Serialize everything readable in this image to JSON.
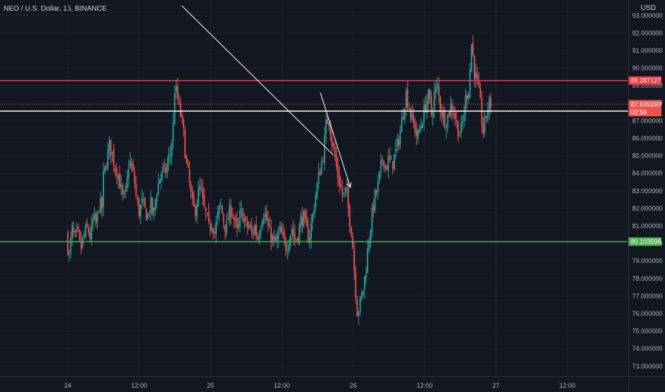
{
  "header": {
    "title": "NEO / U.S. Dollar, 15, BINANCE",
    "currency": "USD"
  },
  "colors": {
    "background": "#131722",
    "up": "#26a69a",
    "down": "#ef5350",
    "resistance": "#f23645",
    "support": "#4caf50",
    "marker": "#ffffff",
    "trendline": "#ffffff",
    "price": "#ef5350",
    "axis_text": "#b2b5be"
  },
  "chart_data": {
    "type": "candlestick",
    "y_axis": {
      "ticks": [
        "93.000000",
        "92.000000",
        "91.000000",
        "90.000000",
        "89.000000",
        "88.000000",
        "87.000000",
        "86.000000",
        "85.000000",
        "84.000000",
        "83.000000",
        "82.000000",
        "81.000000",
        "80.000000",
        "79.000000",
        "78.000000",
        "77.000000",
        "76.000000",
        "75.000000",
        "74.000000",
        "73.000000"
      ],
      "range": [
        72.6,
        93.4
      ]
    },
    "x_axis": {
      "ticks": [
        "24",
        "12:00",
        "25",
        "12:00",
        "26",
        "12:00",
        "27",
        "12:00"
      ]
    },
    "horizontal_lines": [
      {
        "label": "89.287127",
        "value": 89.287127,
        "role": "resistance"
      },
      {
        "label": "87.552208",
        "value": 87.552208,
        "role": "marker"
      },
      {
        "label": "80.103598",
        "value": 80.103598,
        "role": "support"
      }
    ],
    "current_price": {
      "value": "87.939260",
      "countdown": "02:56"
    },
    "trend_line": {
      "from": {
        "bar": 0.8,
        "price": 93.55
      },
      "to": {
        "bar": 1.86,
        "price": 85.05
      }
    },
    "projection_arrow": {
      "from": {
        "bar": 1.77,
        "price": 88.6
      },
      "to": {
        "bar": 1.98,
        "price": 83.2
      }
    },
    "price_path": [
      [
        0.0,
        80.5
      ],
      [
        0.02,
        79.2
      ],
      [
        0.04,
        80.8
      ],
      [
        0.06,
        80.2
      ],
      [
        0.08,
        80.6
      ],
      [
        0.1,
        79.6
      ],
      [
        0.12,
        80.4
      ],
      [
        0.15,
        80.9
      ],
      [
        0.17,
        80.3
      ],
      [
        0.19,
        81.5
      ],
      [
        0.21,
        81.0
      ],
      [
        0.23,
        82.3
      ],
      [
        0.25,
        82.0
      ],
      [
        0.26,
        83.8
      ],
      [
        0.28,
        84.6
      ],
      [
        0.3,
        85.6
      ],
      [
        0.32,
        85.2
      ],
      [
        0.34,
        84.4
      ],
      [
        0.36,
        84.1
      ],
      [
        0.38,
        83.2
      ],
      [
        0.4,
        82.4
      ],
      [
        0.42,
        83.0
      ],
      [
        0.44,
        84.8
      ],
      [
        0.46,
        84.2
      ],
      [
        0.48,
        83.4
      ],
      [
        0.49,
        82.6
      ],
      [
        0.51,
        81.8
      ],
      [
        0.53,
        82.3
      ],
      [
        0.55,
        81.9
      ],
      [
        0.57,
        81.5
      ],
      [
        0.59,
        82.3
      ],
      [
        0.61,
        81.5
      ],
      [
        0.63,
        82.9
      ],
      [
        0.65,
        83.6
      ],
      [
        0.67,
        84.2
      ],
      [
        0.69,
        83.9
      ],
      [
        0.71,
        84.6
      ],
      [
        0.73,
        85.2
      ],
      [
        0.75,
        86.8
      ],
      [
        0.76,
        89.0
      ],
      [
        0.78,
        88.2
      ],
      [
        0.8,
        87.4
      ],
      [
        0.82,
        86.4
      ],
      [
        0.84,
        84.6
      ],
      [
        0.86,
        83.6
      ],
      [
        0.88,
        82.3
      ],
      [
        0.9,
        81.8
      ],
      [
        0.92,
        82.6
      ],
      [
        0.94,
        83.3
      ],
      [
        0.96,
        82.1
      ],
      [
        0.98,
        81.6
      ],
      [
        1.0,
        80.8
      ],
      [
        1.02,
        81.3
      ],
      [
        1.04,
        80.6
      ],
      [
        1.06,
        81.5
      ],
      [
        1.08,
        82.2
      ],
      [
        1.1,
        81.4
      ],
      [
        1.12,
        80.8
      ],
      [
        1.14,
        81.7
      ],
      [
        1.16,
        82.0
      ],
      [
        1.18,
        81.2
      ],
      [
        1.2,
        80.5
      ],
      [
        1.22,
        81.8
      ],
      [
        1.24,
        81.6
      ],
      [
        1.26,
        80.9
      ],
      [
        1.28,
        81.0
      ],
      [
        1.3,
        80.5
      ],
      [
        1.32,
        81.0
      ],
      [
        1.34,
        80.3
      ],
      [
        1.36,
        81.1
      ],
      [
        1.38,
        81.9
      ],
      [
        1.4,
        81.5
      ],
      [
        1.42,
        80.6
      ],
      [
        1.44,
        80.4
      ],
      [
        1.46,
        79.9
      ],
      [
        1.48,
        80.3
      ],
      [
        1.5,
        80.7
      ],
      [
        1.52,
        80.1
      ],
      [
        1.54,
        79.8
      ],
      [
        1.56,
        80.3
      ],
      [
        1.58,
        80.9
      ],
      [
        1.6,
        80.2
      ],
      [
        1.62,
        80.4
      ],
      [
        1.64,
        81.2
      ],
      [
        1.66,
        81.6
      ],
      [
        1.68,
        80.8
      ],
      [
        1.7,
        80.3
      ],
      [
        1.72,
        81.2
      ],
      [
        1.74,
        82.4
      ],
      [
        1.76,
        83.4
      ],
      [
        1.78,
        84.3
      ],
      [
        1.8,
        85.1
      ],
      [
        1.82,
        86.7
      ],
      [
        1.84,
        87.3
      ],
      [
        1.86,
        85.9
      ],
      [
        1.88,
        85.0
      ],
      [
        1.9,
        84.0
      ],
      [
        1.92,
        83.3
      ],
      [
        1.94,
        82.6
      ],
      [
        1.96,
        83.1
      ],
      [
        1.98,
        81.7
      ],
      [
        2.0,
        80.7
      ],
      [
        2.02,
        78.2
      ],
      [
        2.04,
        76.0
      ],
      [
        2.06,
        76.6
      ],
      [
        2.08,
        77.4
      ],
      [
        2.1,
        78.6
      ],
      [
        2.12,
        80.3
      ],
      [
        2.14,
        81.5
      ],
      [
        2.16,
        82.6
      ],
      [
        2.18,
        83.1
      ],
      [
        2.2,
        84.1
      ],
      [
        2.22,
        85.0
      ],
      [
        2.24,
        84.3
      ],
      [
        2.26,
        84.8
      ],
      [
        2.28,
        84.4
      ],
      [
        2.3,
        85.0
      ],
      [
        2.32,
        85.6
      ],
      [
        2.34,
        86.4
      ],
      [
        2.36,
        87.5
      ],
      [
        2.38,
        88.6
      ],
      [
        2.4,
        87.9
      ],
      [
        2.42,
        87.1
      ],
      [
        2.44,
        86.7
      ],
      [
        2.46,
        86.0
      ],
      [
        2.48,
        86.6
      ],
      [
        2.5,
        87.3
      ],
      [
        2.52,
        88.0
      ],
      [
        2.54,
        88.4
      ],
      [
        2.56,
        87.3
      ],
      [
        2.58,
        88.6
      ],
      [
        2.6,
        88.9
      ],
      [
        2.62,
        87.8
      ],
      [
        2.64,
        87.3
      ],
      [
        2.66,
        86.9
      ],
      [
        2.68,
        87.5
      ],
      [
        2.7,
        87.9
      ],
      [
        2.72,
        87.4
      ],
      [
        2.74,
        86.6
      ],
      [
        2.76,
        86.2
      ],
      [
        2.78,
        87.0
      ],
      [
        2.8,
        88.4
      ],
      [
        2.82,
        88.8
      ],
      [
        2.84,
        91.5
      ],
      [
        2.86,
        89.8
      ],
      [
        2.88,
        89.1
      ],
      [
        2.9,
        88.0
      ],
      [
        2.92,
        86.3
      ],
      [
        2.94,
        87.2
      ],
      [
        2.96,
        88.0
      ],
      [
        2.97,
        87.94
      ]
    ]
  }
}
